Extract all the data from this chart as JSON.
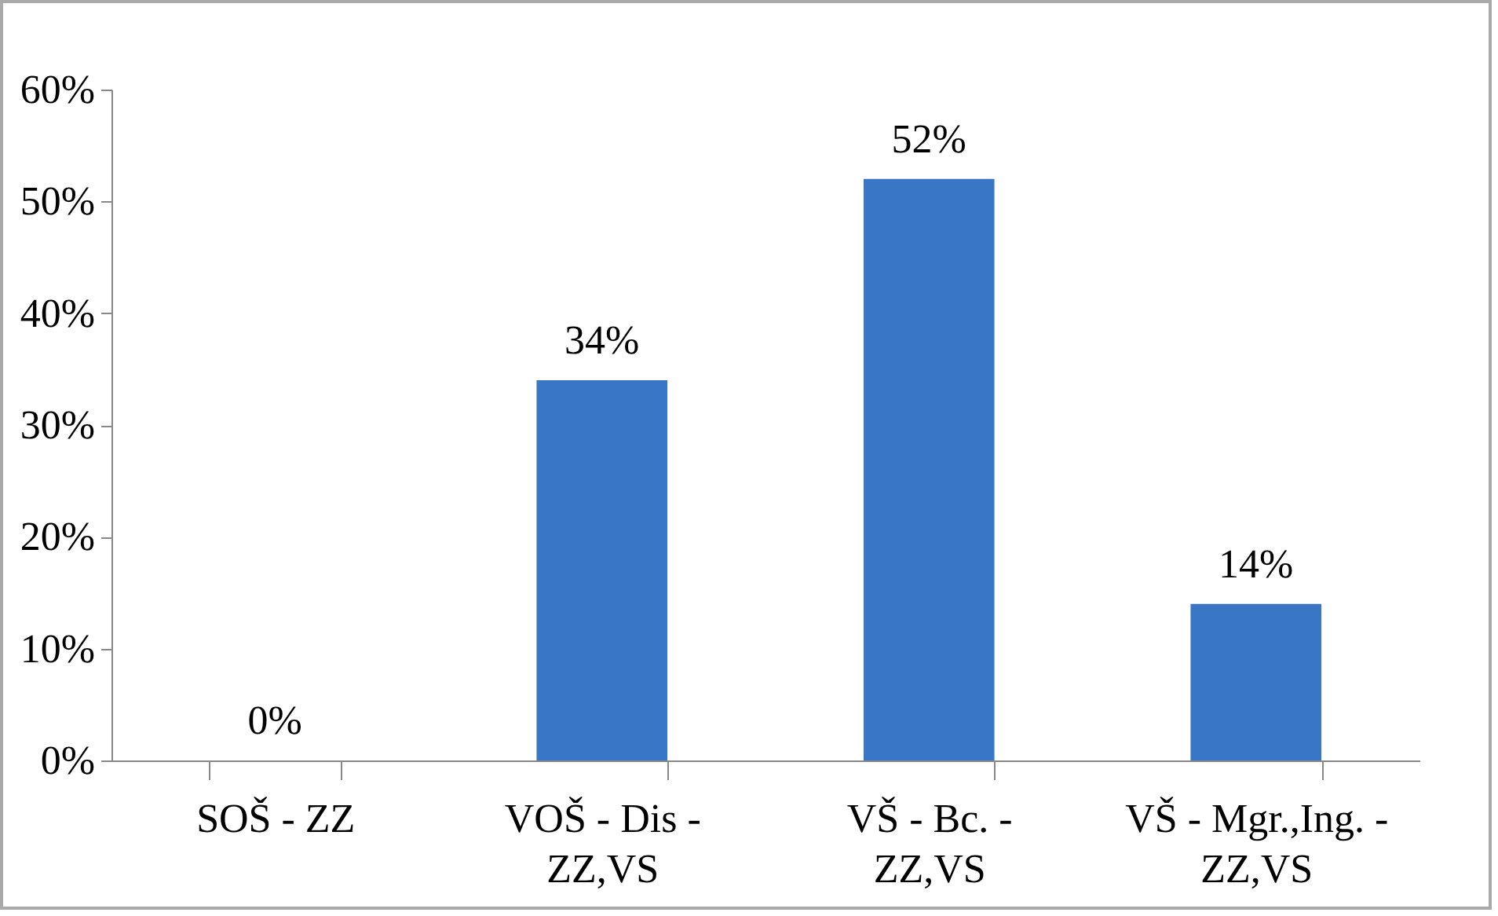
{
  "chart_data": {
    "type": "bar",
    "categories": [
      "SOŠ - ZZ",
      "VOŠ - Dis -\nZZ,VS",
      "VŠ - Bc. -\nZZ,VS",
      "VŠ - Mgr.,Ing. -\nZZ,VS"
    ],
    "values": [
      0,
      34,
      52,
      14
    ],
    "value_labels": [
      "0%",
      "34%",
      "52%",
      "14%"
    ],
    "color": "#3a76c6",
    "ylim": [
      0,
      60
    ],
    "yticks": [
      {
        "value": 0,
        "label": "0%"
      },
      {
        "value": 10,
        "label": "10%"
      },
      {
        "value": 20,
        "label": "20%"
      },
      {
        "value": 30,
        "label": "30%"
      },
      {
        "value": 40,
        "label": "40%"
      },
      {
        "value": 50,
        "label": "50%"
      },
      {
        "value": 60,
        "label": "60%"
      }
    ],
    "grid": false
  }
}
